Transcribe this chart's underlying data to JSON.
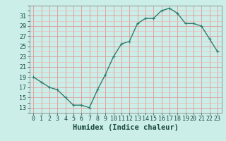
{
  "x": [
    0,
    1,
    2,
    3,
    4,
    5,
    6,
    7,
    8,
    9,
    10,
    11,
    12,
    13,
    14,
    15,
    16,
    17,
    18,
    19,
    20,
    21,
    22,
    23
  ],
  "y": [
    19.0,
    18.0,
    17.0,
    16.5,
    15.0,
    13.5,
    13.5,
    13.0,
    16.5,
    19.5,
    23.0,
    25.5,
    26.0,
    29.5,
    30.5,
    30.5,
    32.0,
    32.5,
    31.5,
    29.5,
    29.5,
    29.0,
    26.5,
    24.0
  ],
  "line_color": "#2e7d6e",
  "marker": "+",
  "marker_size": 3,
  "bg_color": "#cceee8",
  "grid_minor_color": "#f0b8b8",
  "grid_major_color": "#e09898",
  "xlabel": "Humidex (Indice chaleur)",
  "xlim": [
    -0.5,
    23.5
  ],
  "ylim": [
    12,
    33
  ],
  "yticks": [
    13,
    15,
    17,
    19,
    21,
    23,
    25,
    27,
    29,
    31
  ],
  "xticks": [
    0,
    1,
    2,
    3,
    4,
    5,
    6,
    7,
    8,
    9,
    10,
    11,
    12,
    13,
    14,
    15,
    16,
    17,
    18,
    19,
    20,
    21,
    22,
    23
  ],
  "tick_fontsize": 6,
  "xlabel_fontsize": 7.5,
  "font_color": "#1a4a42"
}
